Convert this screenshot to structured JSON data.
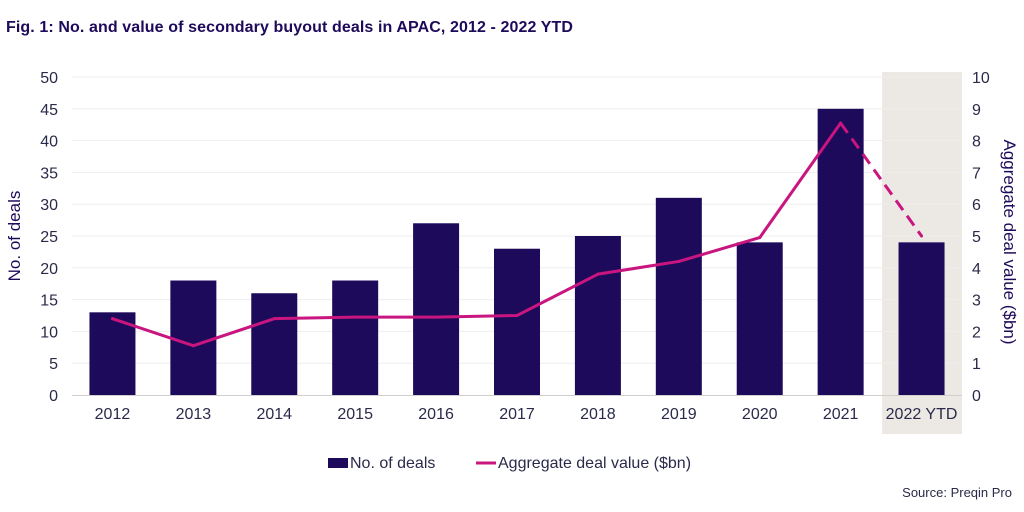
{
  "title": "Fig. 1: No. and value of secondary buyout deals in APAC, 2012 - 2022 YTD",
  "source": "Source: Preqin Pro",
  "colors": {
    "bar": "#1e0a5a",
    "line": "#c8157f",
    "highlight": "#ece8e3",
    "grid": "#eeeeee",
    "axis": "#cfcfcf"
  },
  "chart_data": {
    "type": "bar",
    "categories": [
      "2012",
      "2013",
      "2014",
      "2015",
      "2016",
      "2017",
      "2018",
      "2019",
      "2020",
      "2021",
      "2022 YTD"
    ],
    "series": [
      {
        "name": "No. of deals",
        "type": "bar",
        "axis": "left",
        "values": [
          13,
          18,
          16,
          18,
          27,
          23,
          25,
          31,
          24,
          45,
          24
        ]
      },
      {
        "name": "Aggregate deal value ($bn)",
        "type": "line",
        "axis": "right",
        "values": [
          2.4,
          1.55,
          2.4,
          2.45,
          2.45,
          2.5,
          3.8,
          4.2,
          4.95,
          8.55,
          5.0
        ],
        "dashed_from_index": 9
      }
    ],
    "ylabel": "No. of deals",
    "ylim": [
      0,
      50
    ],
    "yticks": [
      "0",
      "5",
      "10",
      "15",
      "20",
      "25",
      "30",
      "35",
      "40",
      "45",
      "50"
    ],
    "y2label": "Aggregate deal value ($bn)",
    "y2lim": [
      0,
      10
    ],
    "y2ticks": [
      "0",
      "1",
      "2",
      "3",
      "4",
      "5",
      "6",
      "7",
      "8",
      "9",
      "10"
    ],
    "highlighted_category": "2022 YTD",
    "grid": true,
    "legend": {
      "position": "bottom-center",
      "entries": [
        "No. of deals",
        "Aggregate deal value ($bn)"
      ]
    }
  }
}
